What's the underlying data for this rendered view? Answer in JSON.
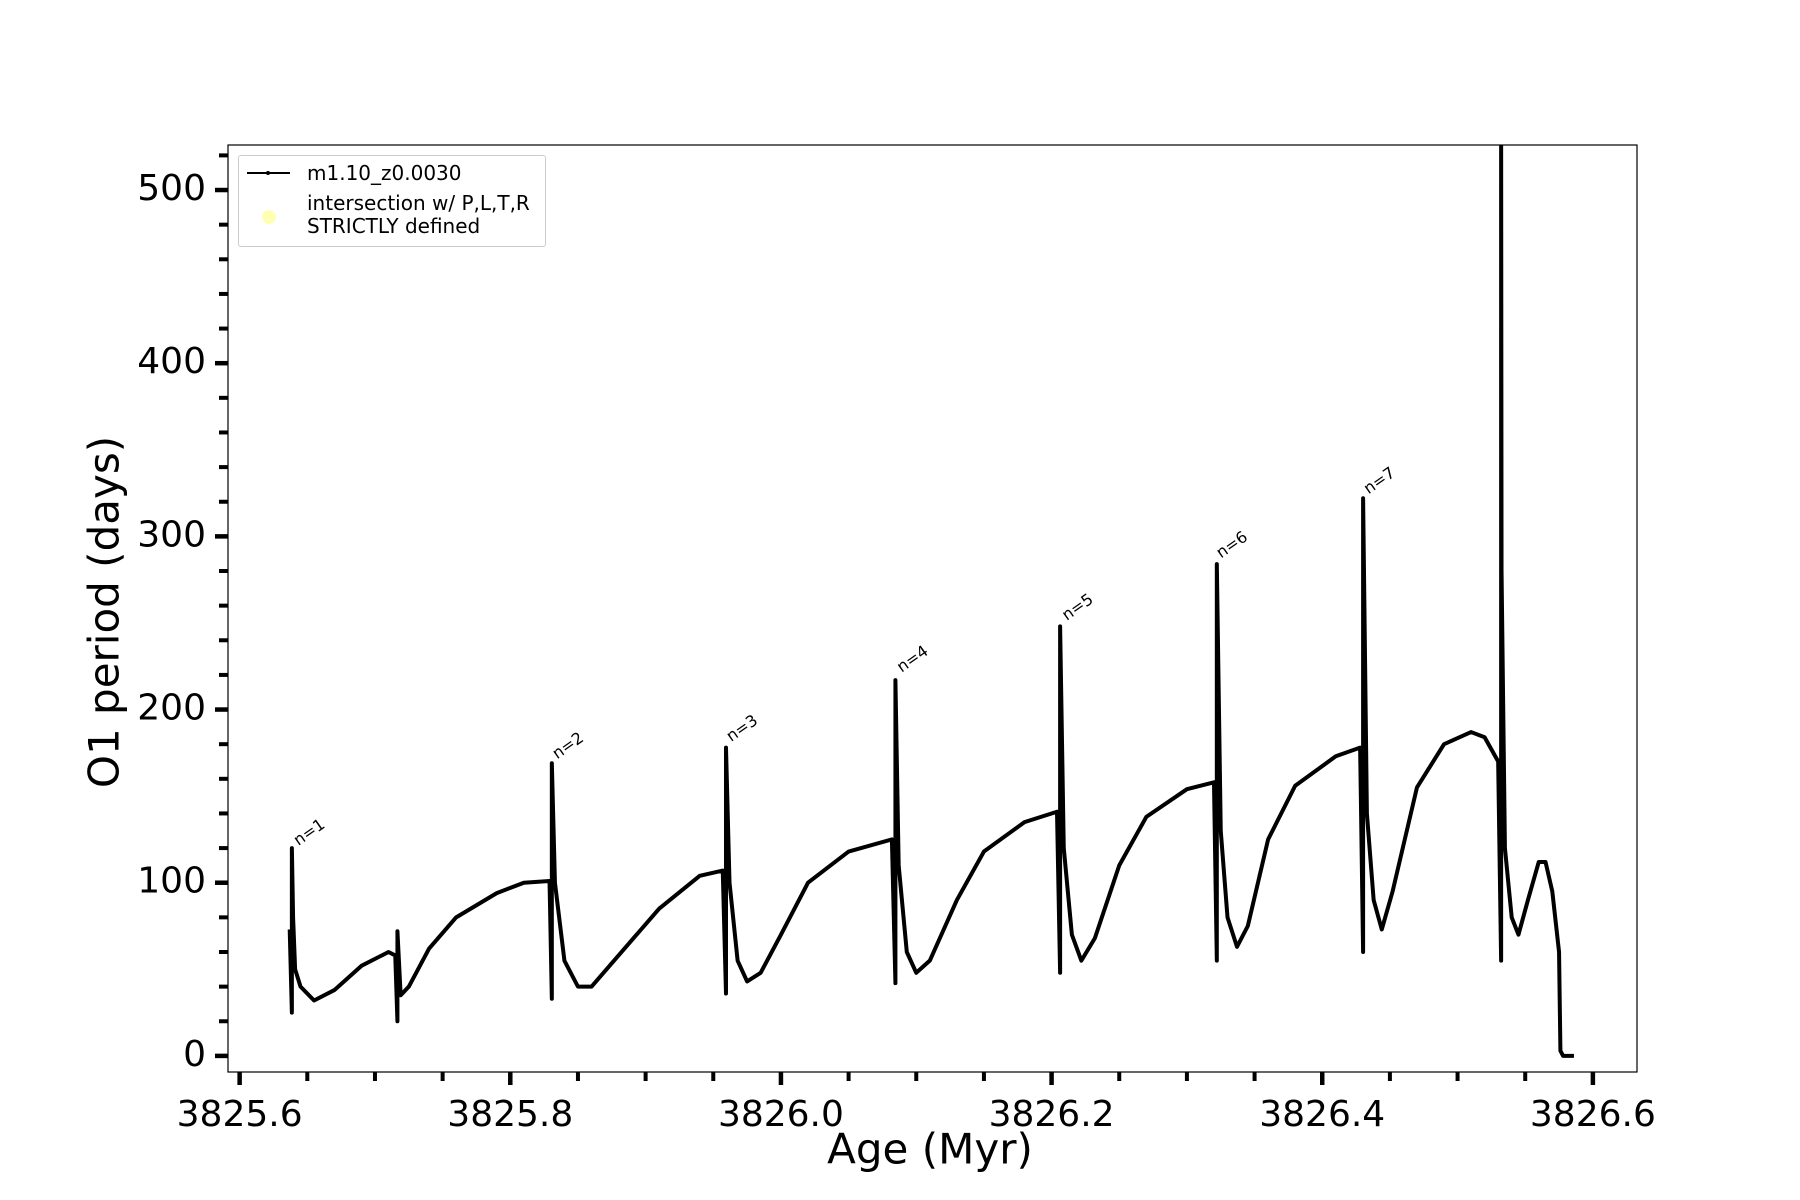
{
  "chart_data": {
    "type": "line",
    "xlabel": "Age (Myr)",
    "ylabel": "O1 period (days)",
    "xlim": [
      3825.5914,
      3826.6326
    ],
    "ylim": [
      -9.3,
      526
    ],
    "xticks": [
      3825.6,
      3825.8,
      {
        "value": 3826,
        "label": "3826.0"
      },
      3826.2,
      3826.4,
      3826.6
    ],
    "yticks": [
      0,
      100,
      200,
      300,
      400,
      500
    ],
    "xminorticks": [
      3825.65,
      3825.7,
      3825.75,
      3825.85,
      3825.9,
      3825.95,
      3826.05,
      3826.1,
      3826.15,
      3826.25,
      3826.3,
      3826.35,
      3826.45,
      3826.5,
      3826.55
    ],
    "yminorticks": [
      20,
      40,
      60,
      80,
      120,
      140,
      160,
      180,
      220,
      240,
      260,
      280,
      320,
      340,
      360,
      380,
      420,
      440,
      460,
      480,
      520
    ],
    "legend": "upper left",
    "series": [
      {
        "name": "m1.10_z0.0030",
        "color": "#000000",
        "x": [
          3825.637,
          3825.6386,
          3825.6386,
          3825.6395,
          3825.641,
          3825.645,
          3825.655,
          3825.67,
          3825.69,
          3825.71,
          3825.715,
          3825.7166,
          3825.7166,
          3825.719,
          3825.725,
          3825.74,
          3825.76,
          3825.79,
          3825.81,
          3825.829,
          3825.8307,
          3825.8307,
          3825.833,
          3825.84,
          3825.85,
          3825.86,
          3825.88,
          3825.91,
          3825.94,
          3825.957,
          3825.9594,
          3825.9594,
          3825.962,
          3825.968,
          3825.975,
          3825.985,
          3826.0,
          3826.02,
          3826.05,
          3826.082,
          3826.0846,
          3826.0846,
          3826.087,
          3826.093,
          3826.1,
          3826.11,
          3826.13,
          3826.15,
          3826.18,
          3826.204,
          3826.2063,
          3826.2063,
          3826.209,
          3826.215,
          3826.222,
          3826.232,
          3826.25,
          3826.27,
          3826.3,
          3826.32,
          3826.3221,
          3826.3221,
          3826.325,
          3826.33,
          3826.337,
          3826.345,
          3826.36,
          3826.38,
          3826.41,
          3826.428,
          3826.4302,
          3826.4302,
          3826.433,
          3826.438,
          3826.444,
          3826.452,
          3826.47,
          3826.49,
          3826.51,
          3826.52,
          3826.53,
          3826.5322,
          3826.5322,
          3826.5325,
          3826.535,
          3826.54,
          3826.545,
          3826.552,
          3826.56,
          3826.565,
          3826.57,
          3826.575,
          3826.576,
          3826.578,
          3826.586
        ],
        "values": [
          73,
          25,
          120,
          80,
          50,
          40,
          32,
          38,
          52,
          60,
          58,
          20,
          72,
          35,
          40,
          62,
          80,
          94,
          100,
          101,
          33,
          169,
          100,
          55,
          40,
          40,
          58,
          85,
          104,
          107,
          36,
          178,
          100,
          55,
          43,
          48,
          70,
          100,
          118,
          125,
          42,
          217,
          110,
          60,
          48,
          55,
          90,
          118,
          135,
          141,
          48,
          248,
          120,
          70,
          55,
          68,
          110,
          138,
          154,
          158,
          55,
          284,
          130,
          80,
          63,
          75,
          125,
          156,
          173,
          178,
          60,
          322,
          140,
          90,
          73,
          95,
          155,
          180,
          187,
          184,
          170,
          55,
          530,
          280,
          120,
          80,
          70,
          90,
          112,
          112,
          95,
          60,
          3,
          0,
          0
        ]
      },
      {
        "name": "intersection w/ P,L,T,R\nSTRICTLY defined",
        "color": "#ffffb3",
        "x": [],
        "values": []
      }
    ],
    "annotations": [
      {
        "text": "n=1",
        "x": 3825.6412,
        "y": 120
      },
      {
        "text": "n=2",
        "x": 3825.8324,
        "y": 170
      },
      {
        "text": "n=3",
        "x": 3825.961,
        "y": 180
      },
      {
        "text": "n=4",
        "x": 3826.087,
        "y": 220
      },
      {
        "text": "n=5",
        "x": 3826.209,
        "y": 250
      },
      {
        "text": "n=6",
        "x": 3826.323,
        "y": 286
      },
      {
        "text": "n=7",
        "x": 3826.432,
        "y": 323
      }
    ]
  }
}
